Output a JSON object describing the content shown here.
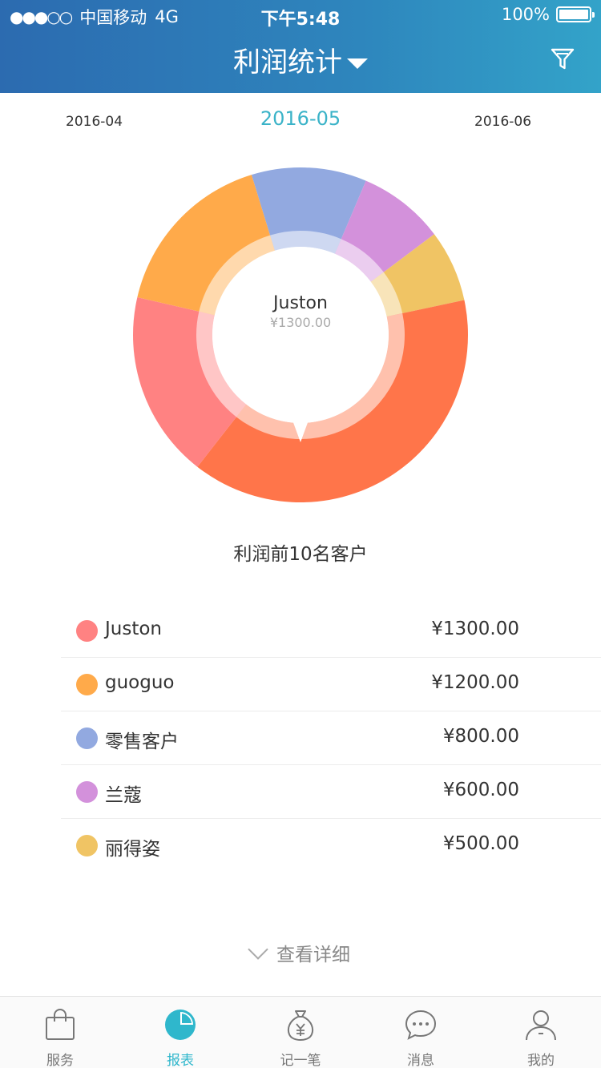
{
  "status_bar": {
    "carrier": "中国移动",
    "network": "4G",
    "time": "下午5:48",
    "battery": "100%"
  },
  "header": {
    "title": "利润统计"
  },
  "months": {
    "prev": "2016-04",
    "current": "2016-05",
    "next": "2016-06"
  },
  "chart_data": {
    "type": "pie",
    "center": {
      "name": "Juston",
      "value": "¥1300.00"
    },
    "slices": [
      {
        "name": "Juston",
        "value": 1300,
        "color": "#ff8282"
      },
      {
        "name": "guoguo",
        "value": 1200,
        "color": "#ffaa4a"
      },
      {
        "name": "零售客户",
        "value": 800,
        "color": "#92a9e0"
      },
      {
        "name": "兰蔻",
        "value": 600,
        "color": "#d391db"
      },
      {
        "name": "丽得姿",
        "value": 500,
        "color": "#f0c464"
      }
    ],
    "extra_slices": [
      {
        "value": 2800,
        "color": "#ff754a"
      }
    ]
  },
  "section_title": "利润前10名客户",
  "customers": [
    {
      "name": "Juston",
      "amount": "¥1300.00",
      "color": "#ff8282"
    },
    {
      "name": "guoguo",
      "amount": "¥1200.00",
      "color": "#ffaa4a"
    },
    {
      "name": "零售客户",
      "amount": "¥800.00",
      "color": "#92a9e0"
    },
    {
      "name": "兰蔻",
      "amount": "¥600.00",
      "color": "#d391db"
    },
    {
      "name": "丽得姿",
      "amount": "¥500.00",
      "color": "#f0c464"
    }
  ],
  "more_label": "查看详细",
  "tabs": [
    {
      "label": "服务",
      "icon": "shopping-bag-icon"
    },
    {
      "label": "报表",
      "icon": "pie-chart-icon",
      "active": true
    },
    {
      "label": "记一笔",
      "icon": "money-bag-icon"
    },
    {
      "label": "消息",
      "icon": "chat-bubble-icon"
    },
    {
      "label": "我的",
      "icon": "user-icon"
    }
  ]
}
